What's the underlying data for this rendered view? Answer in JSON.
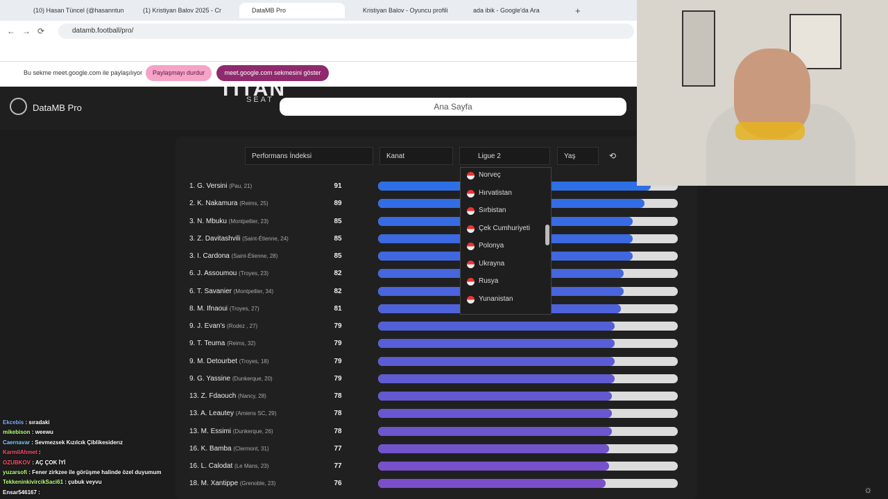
{
  "browser": {
    "tabs": [
      "(10) Hasan Tüncel (@hasanntun",
      "(1) Kristiyan Balov 2025 - Cr",
      "DataMB Pro",
      "Kristiyan Balov - Oyuncu profili",
      "ada ibik - Google'da Ara"
    ],
    "active_tab": 2,
    "url": "datamb.football/pro/"
  },
  "share_bar": {
    "message": "Bu sekme meet.google.com ile paylaşılıyor",
    "stop_button": "Paylaşmayı durdur",
    "show_button": "meet.google.com sekmesini göster"
  },
  "header": {
    "logo": "DataMB Pro",
    "overlay_brand": "TITAN",
    "overlay_sub": "SEAT",
    "search": "Ana Sayfa"
  },
  "filters": {
    "metric": "Performans İndeksi",
    "position": "Kanat",
    "league": "Ligue 2",
    "age": "Yaş"
  },
  "dropdown": [
    "Norveç",
    "Hırvatistan",
    "Sırbistan",
    "Çek Cumhuriyeti",
    "Polonya",
    "Ukrayna",
    "Rusya",
    "Yunanistan"
  ],
  "rankings": [
    {
      "label": "1. G. Versini",
      "meta": "(Pau, 21)",
      "value": 91
    },
    {
      "label": "2. K. Nakamura",
      "meta": "(Reims, 25)",
      "value": 89
    },
    {
      "label": "3. N. Mbuku",
      "meta": "(Montpellier, 23)",
      "value": 85
    },
    {
      "label": "3. Z. Davitashvili",
      "meta": "(Saint-Étienne, 24)",
      "value": 85
    },
    {
      "label": "3. I. Cardona",
      "meta": "(Saint-Étienne, 28)",
      "value": 85
    },
    {
      "label": "6. J. Assoumou",
      "meta": "(Troyes, 23)",
      "value": 82
    },
    {
      "label": "6. T. Savanier",
      "meta": "(Montpellier, 34)",
      "value": 82
    },
    {
      "label": "8. M. Ifnaoui",
      "meta": "(Troyes, 27)",
      "value": 81
    },
    {
      "label": "9. J. Evan's",
      "meta": "(Rodez , 27)",
      "value": 79
    },
    {
      "label": "9. T. Teuma",
      "meta": "(Reims, 32)",
      "value": 79
    },
    {
      "label": "9. M. Detourbet",
      "meta": "(Troyes, 18)",
      "value": 79
    },
    {
      "label": "9. G. Yassine",
      "meta": "(Dunkerque, 20)",
      "value": 79
    },
    {
      "label": "13. Z. Fdaouch",
      "meta": "(Nancy, 28)",
      "value": 78
    },
    {
      "label": "13. A. Leautey",
      "meta": "(Amiens SC, 29)",
      "value": 78
    },
    {
      "label": "13. M. Essimi",
      "meta": "(Dunkerque, 26)",
      "value": 78
    },
    {
      "label": "16. K. Bamba",
      "meta": "(Clermont, 31)",
      "value": 77
    },
    {
      "label": "16. L. Calodat",
      "meta": "(Le Mans, 23)",
      "value": 77
    },
    {
      "label": "18. M. Xantippe",
      "meta": "(Grenoble, 23)",
      "value": 76
    }
  ],
  "chat": [
    {
      "user": "Ekcebis",
      "text": ": sıradaki",
      "color": "#7fb2ff"
    },
    {
      "user": "mikebison",
      "text": ": weewu",
      "color": "#b9ff7f"
    },
    {
      "user": "Caernavar",
      "text": ": Sevmezsek Kızılcık Çiblikesiderız",
      "color": "#7fd0ff"
    },
    {
      "user": "KarmilAhmet",
      "text": ":",
      "color": "#ff4d6d"
    },
    {
      "user": "OZUBKOV",
      "text": ": AÇ ÇOK İYİ",
      "color": "#ff4d6d"
    },
    {
      "user": "yuzarsofi",
      "text": ": Fener zirkzee ile görüşme halinde özel duyumum",
      "color": "#b9ff7f"
    },
    {
      "user": "TekkeninkivircikSaci61",
      "text": ": çubuk veyvu",
      "color": "#b9ff7f"
    },
    {
      "user": "Ensar546167",
      "text": ":",
      "color": "#ffffff"
    }
  ]
}
